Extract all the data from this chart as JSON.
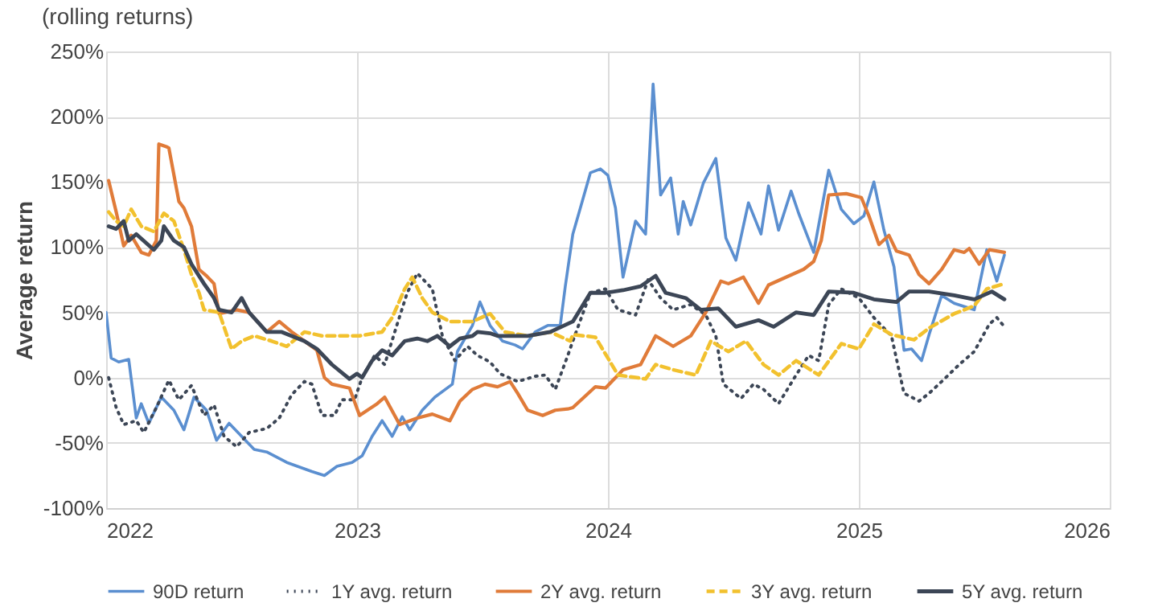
{
  "chart_data": {
    "type": "line",
    "title": "(rolling returns)",
    "ylabel": "Average return",
    "xlim": [
      2022,
      2026
    ],
    "xticks": [
      2022,
      2023,
      2024,
      2025,
      2026
    ],
    "ylim": [
      -100,
      250
    ],
    "yticks": [
      {
        "value": -100,
        "label": "-100%"
      },
      {
        "value": -50,
        "label": "-50%"
      },
      {
        "value": 0,
        "label": "0%"
      },
      {
        "value": 50,
        "label": "50%"
      },
      {
        "value": 100,
        "label": "100%"
      },
      {
        "value": 150,
        "label": "150%"
      },
      {
        "value": 200,
        "label": "200%"
      },
      {
        "value": 250,
        "label": "250%"
      }
    ],
    "grid": true,
    "legend": "bottom",
    "marker": "none",
    "series": [
      {
        "name": "90D return",
        "color": "#5b8fd0",
        "line_style": "solid",
        "x": [
          2022.0,
          2022.02,
          2022.05,
          2022.09,
          2022.12,
          2022.14,
          2022.17,
          2022.22,
          2022.27,
          2022.31,
          2022.35,
          2022.4,
          2022.44,
          2022.49,
          2022.54,
          2022.59,
          2022.64,
          2022.72,
          2022.82,
          2022.87,
          2022.92,
          2022.98,
          2023.02,
          2023.06,
          2023.1,
          2023.14,
          2023.18,
          2023.21,
          2023.26,
          2023.31,
          2023.38,
          2023.4,
          2023.46,
          2023.49,
          2023.53,
          2023.58,
          2023.63,
          2023.66,
          2023.71,
          2023.76,
          2023.81,
          2023.83,
          2023.86,
          2023.89,
          2023.93,
          2023.97,
          2024.0,
          2024.03,
          2024.06,
          2024.11,
          2024.15,
          2024.18,
          2024.21,
          2024.25,
          2024.28,
          2024.3,
          2024.33,
          2024.38,
          2024.43,
          2024.47,
          2024.51,
          2024.56,
          2024.61,
          2024.64,
          2024.68,
          2024.73,
          2024.76,
          2024.82,
          2024.88,
          2024.93,
          2024.98,
          2025.02,
          2025.06,
          2025.1,
          2025.14,
          2025.18,
          2025.21,
          2025.25,
          2025.28,
          2025.33,
          2025.38,
          2025.46,
          2025.51,
          2025.55,
          2025.58
        ],
        "values": [
          50,
          15,
          12,
          14,
          -31,
          -20,
          -35,
          -15,
          -25,
          -40,
          -15,
          -25,
          -48,
          -35,
          -45,
          -55,
          -57,
          -65,
          -72,
          -75,
          -68,
          -65,
          -60,
          -45,
          -33,
          -45,
          -30,
          -40,
          -25,
          -15,
          -5,
          20,
          40,
          58,
          40,
          28,
          25,
          22,
          35,
          40,
          40,
          70,
          110,
          130,
          157,
          160,
          155,
          130,
          77,
          120,
          110,
          225,
          140,
          153,
          110,
          135,
          117,
          149,
          168,
          107,
          90,
          134,
          110,
          147,
          113,
          143,
          126,
          96,
          159,
          129,
          118,
          124,
          150,
          113,
          85,
          21,
          22,
          13,
          33,
          63,
          57,
          52,
          98,
          74,
          94
        ]
      },
      {
        "name": "1Y avg. return",
        "color": "#3c4656",
        "line_style": "dotted",
        "x": [
          2022.01,
          2022.04,
          2022.07,
          2022.12,
          2022.15,
          2022.2,
          2022.25,
          2022.29,
          2022.34,
          2022.39,
          2022.43,
          2022.47,
          2022.52,
          2022.57,
          2022.64,
          2022.69,
          2022.74,
          2022.79,
          2022.82,
          2022.86,
          2022.91,
          2022.94,
          2022.99,
          2023.02,
          2023.07,
          2023.11,
          2023.16,
          2023.2,
          2023.24,
          2023.3,
          2023.34,
          2023.39,
          2023.44,
          2023.48,
          2023.53,
          2023.57,
          2023.64,
          2023.71,
          2023.75,
          2023.79,
          2023.84,
          2023.86,
          2023.93,
          2023.99,
          2024.04,
          2024.11,
          2024.16,
          2024.21,
          2024.26,
          2024.33,
          2024.39,
          2024.43,
          2024.46,
          2024.53,
          2024.58,
          2024.62,
          2024.68,
          2024.75,
          2024.8,
          2024.84,
          2024.88,
          2024.93,
          2025.0,
          2025.06,
          2025.13,
          2025.18,
          2025.24,
          2025.28,
          2025.33,
          2025.4,
          2025.46,
          2025.52,
          2025.55,
          2025.58
        ],
        "values": [
          0,
          -23,
          -36,
          -33,
          -42,
          -23,
          -2,
          -17,
          -6,
          -29,
          -21,
          -45,
          -53,
          -42,
          -39,
          -31,
          -13,
          -3,
          -5,
          -29,
          -29,
          -17,
          -17,
          0,
          17,
          10,
          41,
          65,
          80,
          68,
          32,
          13,
          24,
          17,
          12,
          3,
          -3,
          1,
          2,
          -9,
          17,
          28,
          65,
          68,
          52,
          48,
          75,
          61,
          52,
          56,
          48,
          32,
          -5,
          -16,
          -5,
          -9,
          -20,
          2,
          17,
          13,
          56,
          68,
          61,
          46,
          32,
          -12,
          -18,
          -12,
          -3,
          10,
          20,
          41,
          46,
          39
        ]
      },
      {
        "name": "2Y avg. return",
        "color": "#e07b39",
        "line_style": "solid",
        "x": [
          2022.01,
          2022.04,
          2022.07,
          2022.1,
          2022.14,
          2022.17,
          2022.2,
          2022.21,
          2022.24,
          2022.25,
          2022.29,
          2022.31,
          2022.34,
          2022.37,
          2022.4,
          2022.43,
          2022.45,
          2022.52,
          2022.57,
          2022.64,
          2022.69,
          2022.74,
          2022.79,
          2022.84,
          2022.87,
          2022.9,
          2022.97,
          2023.01,
          2023.08,
          2023.11,
          2023.17,
          2023.24,
          2023.3,
          2023.37,
          2023.41,
          2023.46,
          2023.51,
          2023.56,
          2023.61,
          2023.64,
          2023.68,
          2023.74,
          2023.79,
          2023.84,
          2023.86,
          2023.95,
          2023.99,
          2024.06,
          2024.13,
          2024.19,
          2024.26,
          2024.33,
          2024.39,
          2024.45,
          2024.48,
          2024.54,
          2024.6,
          2024.64,
          2024.71,
          2024.78,
          2024.82,
          2024.85,
          2024.88,
          2024.95,
          2025.01,
          2025.04,
          2025.08,
          2025.12,
          2025.15,
          2025.2,
          2025.24,
          2025.28,
          2025.33,
          2025.38,
          2025.42,
          2025.44,
          2025.48,
          2025.52,
          2025.58
        ],
        "values": [
          151,
          127,
          101,
          109,
          96,
          94,
          105,
          179,
          177,
          176,
          135,
          130,
          116,
          83,
          78,
          72,
          49,
          52,
          50,
          35,
          43,
          35,
          28,
          21,
          0,
          -5,
          -8,
          -29,
          -20,
          -15,
          -36,
          -31,
          -28,
          -33,
          -18,
          -9,
          -5,
          -7,
          -3,
          -12,
          -25,
          -29,
          -25,
          -24,
          -23,
          -7,
          -8,
          6,
          10,
          32,
          24,
          32,
          50,
          74,
          72,
          77,
          57,
          71,
          77,
          83,
          89,
          105,
          140,
          141,
          138,
          124,
          102,
          109,
          97,
          94,
          79,
          72,
          83,
          98,
          96,
          99,
          87,
          98,
          96
        ]
      },
      {
        "name": "3Y avg. return",
        "color": "#f2c12e",
        "line_style": "dashed",
        "x": [
          2022.01,
          2022.04,
          2022.07,
          2022.1,
          2022.14,
          2022.19,
          2022.23,
          2022.27,
          2022.31,
          2022.34,
          2022.37,
          2022.39,
          2022.45,
          2022.5,
          2022.54,
          2022.59,
          2022.66,
          2022.72,
          2022.79,
          2022.86,
          2022.92,
          2023.01,
          2023.1,
          2023.14,
          2023.19,
          2023.22,
          2023.26,
          2023.3,
          2023.37,
          2023.46,
          2023.53,
          2023.59,
          2023.68,
          2023.77,
          2023.85,
          2023.86,
          2023.95,
          2024.04,
          2024.15,
          2024.19,
          2024.26,
          2024.35,
          2024.41,
          2024.48,
          2024.55,
          2024.62,
          2024.68,
          2024.75,
          2024.84,
          2024.93,
          2025.0,
          2025.06,
          2025.13,
          2025.22,
          2025.28,
          2025.38,
          2025.46,
          2025.51,
          2025.58
        ],
        "values": [
          127,
          120,
          116,
          129,
          116,
          112,
          126,
          120,
          98,
          79,
          65,
          52,
          50,
          22,
          28,
          32,
          28,
          24,
          35,
          32,
          32,
          32,
          35,
          46,
          68,
          77,
          61,
          50,
          43,
          43,
          49,
          35,
          32,
          35,
          28,
          33,
          31,
          2,
          -1,
          10,
          6,
          2,
          28,
          20,
          28,
          10,
          2,
          13,
          2,
          26,
          22,
          41,
          33,
          29,
          38,
          49,
          55,
          68,
          72
        ]
      },
      {
        "name": "5Y avg. return",
        "color": "#3c4656",
        "line_style": "solid",
        "x": [
          2022.01,
          2022.04,
          2022.07,
          2022.09,
          2022.12,
          2022.19,
          2022.22,
          2022.23,
          2022.27,
          2022.31,
          2022.34,
          2022.39,
          2022.43,
          2022.45,
          2022.5,
          2022.54,
          2022.57,
          2022.64,
          2022.7,
          2022.79,
          2022.84,
          2022.9,
          2022.97,
          2023.0,
          2023.02,
          2023.06,
          2023.1,
          2023.14,
          2023.19,
          2023.24,
          2023.28,
          2023.32,
          2023.37,
          2023.41,
          2023.46,
          2023.48,
          2023.53,
          2023.56,
          2023.61,
          2023.68,
          2023.77,
          2023.86,
          2023.93,
          2023.99,
          2024.06,
          2024.13,
          2024.19,
          2024.23,
          2024.31,
          2024.37,
          2024.44,
          2024.51,
          2024.6,
          2024.66,
          2024.75,
          2024.82,
          2024.88,
          2024.98,
          2025.06,
          2025.15,
          2025.2,
          2025.28,
          2025.38,
          2025.46,
          2025.53,
          2025.58
        ],
        "values": [
          116,
          114,
          120,
          105,
          110,
          98,
          105,
          116,
          105,
          100,
          87,
          72,
          61,
          52,
          50,
          61,
          50,
          35,
          35,
          28,
          22,
          10,
          -1,
          3,
          0,
          13,
          21,
          17,
          28,
          30,
          28,
          32,
          24,
          30,
          32,
          35,
          34,
          32,
          32,
          32,
          35,
          43,
          65,
          65,
          67,
          70,
          78,
          65,
          61,
          52,
          53,
          39,
          44,
          39,
          50,
          48,
          66,
          65,
          60,
          58,
          66,
          66,
          63,
          60,
          66,
          60
        ]
      }
    ]
  }
}
